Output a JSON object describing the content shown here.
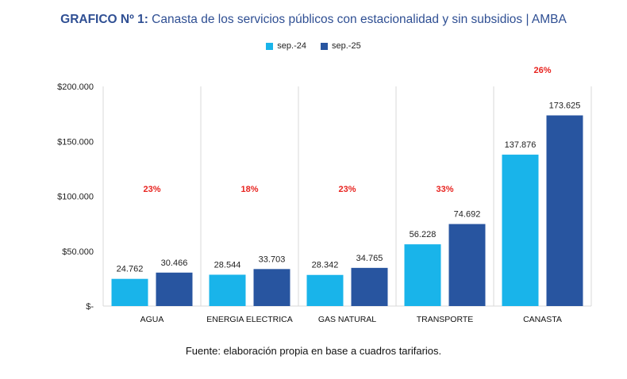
{
  "title": {
    "prefix": "GRAFICO Nº 1:",
    "text": "Canasta de los servicios públicos con estacionalidad y sin subsidios | AMBA"
  },
  "source": "Fuente: elaboración propia en base a cuadros tarifarios.",
  "colors": {
    "sep24": "#19b4ea",
    "sep25": "#2855a0",
    "pct": "#e8231f",
    "title": "#2f4f93"
  },
  "chart_data": {
    "type": "bar",
    "categories": [
      "AGUA",
      "ENERGIA ELECTRICA",
      "GAS NATURAL",
      "TRANSPORTE",
      "CANASTA"
    ],
    "series": [
      {
        "name": "sep.-24",
        "values": [
          24762,
          28544,
          28342,
          56228,
          137876
        ],
        "labels": [
          "24.762",
          "28.544",
          "28.342",
          "56.228",
          "137.876"
        ]
      },
      {
        "name": "sep.-25",
        "values": [
          30466,
          33703,
          34765,
          74692,
          173625
        ],
        "labels": [
          "30.466",
          "33.703",
          "34.765",
          "74.692",
          "173.625"
        ]
      }
    ],
    "annotations": [
      "23%",
      "18%",
      "23%",
      "33%",
      "26%"
    ],
    "yticks": [
      {
        "value": 0,
        "label": "$-"
      },
      {
        "value": 50000,
        "label": "$50.000"
      },
      {
        "value": 100000,
        "label": "$100.000"
      },
      {
        "value": 150000,
        "label": "$150.000"
      },
      {
        "value": 200000,
        "label": "$200.000"
      }
    ],
    "ylim": [
      0,
      200000
    ],
    "legend_position": "top-center",
    "grid": false
  }
}
